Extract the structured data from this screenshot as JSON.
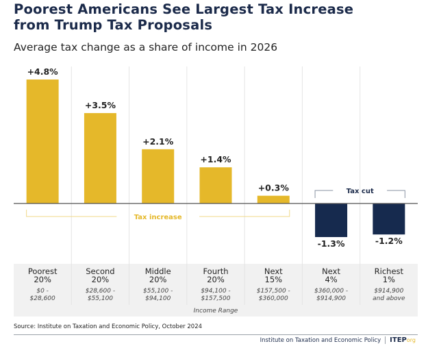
{
  "header": {
    "title_line1": "Poorest Americans See Largest Tax Increase",
    "title_line2": "from Trump Tax Proposals",
    "subtitle": "Average tax change as a share of income in 2026"
  },
  "chart_data": {
    "type": "bar",
    "title": "Poorest Americans See Largest Tax Increase from Trump Tax Proposals",
    "subtitle": "Average tax change as a share of income in 2026",
    "categories": [
      "Poorest 20%",
      "Second 20%",
      "Middle 20%",
      "Fourth 20%",
      "Next 15%",
      "Next 4%",
      "Richest 1%"
    ],
    "category_lines": [
      [
        "Poorest",
        "20%"
      ],
      [
        "Second",
        "20%"
      ],
      [
        "Middle",
        "20%"
      ],
      [
        "Fourth",
        "20%"
      ],
      [
        "Next",
        "15%"
      ],
      [
        "Next",
        "4%"
      ],
      [
        "Richest",
        "1%"
      ]
    ],
    "income_ranges": [
      [
        "$0 -",
        "$28,600"
      ],
      [
        "$28,600 -",
        "$55,100"
      ],
      [
        "$55,100 -",
        "$94,100"
      ],
      [
        "$94,100 -",
        "$157,500"
      ],
      [
        "$157,500 -",
        "$360,000"
      ],
      [
        "$360,000 -",
        "$914,900"
      ],
      [
        "$914,900",
        "and above"
      ]
    ],
    "values": [
      4.8,
      3.5,
      2.1,
      1.4,
      0.3,
      -1.3,
      -1.2
    ],
    "data_labels": [
      "+4.8%",
      "+3.5%",
      "+2.1%",
      "+1.4%",
      "+0.3%",
      "-1.3%",
      "-1.2%"
    ],
    "xlabel": "Income Range",
    "ylabel": "",
    "ylim": [
      -1.6,
      5.2
    ],
    "grid": false,
    "annotations": [
      {
        "text": "Tax increase",
        "spans": [
          0,
          4
        ],
        "color": "#e5b82a"
      },
      {
        "text": "Tax cut",
        "spans": [
          5,
          6
        ],
        "color": "#1b2a4a"
      }
    ],
    "colors": {
      "increase": "#e5b82a",
      "cut": "#162a4e"
    }
  },
  "footer": {
    "source": "Source: Institute on Taxation and Economic Policy, October 2024",
    "org": "Institute on Taxation and Economic Policy",
    "logo": "ITEP",
    "logo_suffix": "org"
  }
}
